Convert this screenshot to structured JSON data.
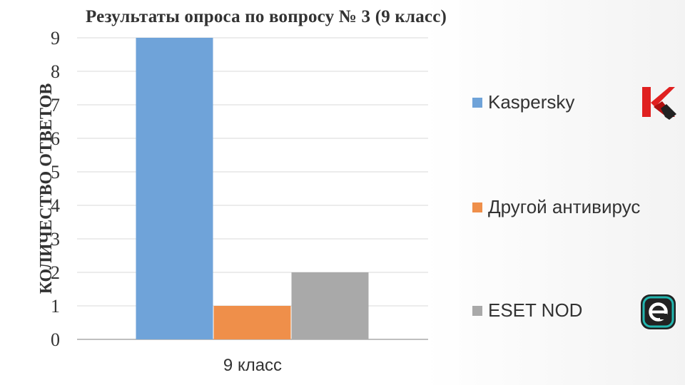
{
  "chart_data": {
    "type": "bar",
    "title": "Результаты опроса по вопросу № 3 (9 класс)",
    "ylabel": "КОЛИЧЕСТВО ОТВЕТОВ",
    "xlabel": "",
    "ylim": [
      0,
      9
    ],
    "y_ticks": [
      "0",
      "1",
      "2",
      "3",
      "4",
      "5",
      "6",
      "7",
      "8",
      "9"
    ],
    "categories": [
      "9 класс"
    ],
    "grid": true,
    "legend_position": "right",
    "series": [
      {
        "name": "Kaspersky",
        "values": [
          9
        ],
        "color": "#6fa3d9"
      },
      {
        "name": "Другой антивирус",
        "values": [
          1
        ],
        "color": "#ef8f4a"
      },
      {
        "name": "ESET NOD",
        "values": [
          2
        ],
        "color": "#a9a9a9"
      }
    ]
  },
  "logos": {
    "kaspersky_icon": "kaspersky-logo-icon",
    "eset_icon": "eset-logo-icon"
  }
}
